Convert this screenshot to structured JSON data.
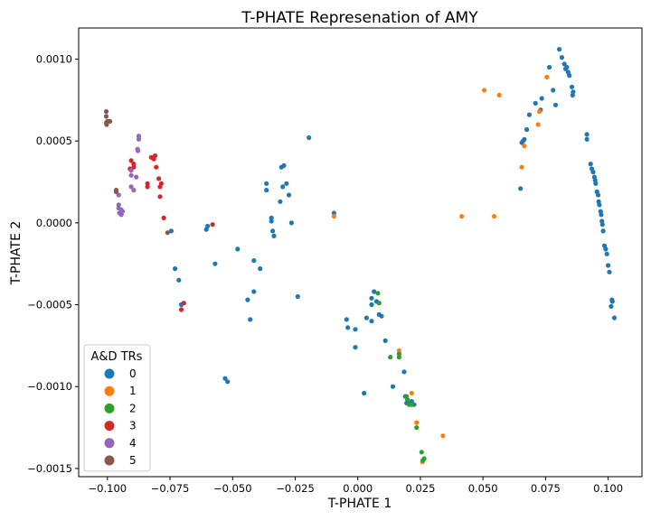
{
  "chart_data": {
    "type": "scatter",
    "title": "T-PHATE Represenation of AMY",
    "xlabel": "T-PHATE 1",
    "ylabel": "T-PHATE 2",
    "xlim": [
      -0.1115,
      0.1135
    ],
    "ylim": [
      -0.00155,
      0.00119
    ],
    "x_ticks": [
      -0.1,
      -0.075,
      -0.05,
      -0.025,
      0.0,
      0.025,
      0.05,
      0.075,
      0.1
    ],
    "x_tick_labels": [
      "−0.100",
      "−0.075",
      "−0.050",
      "−0.025",
      "0.000",
      "0.025",
      "0.050",
      "0.075",
      "0.100"
    ],
    "y_ticks": [
      -0.0015,
      -0.001,
      -0.0005,
      0.0,
      0.0005,
      0.001
    ],
    "y_tick_labels": [
      "−0.0015",
      "−0.0010",
      "−0.0005",
      "0.0000",
      "0.0005",
      "0.0010"
    ],
    "grid": false,
    "legend": {
      "title": "A&D TRs",
      "position": "lower-left"
    },
    "series": [
      {
        "name": "0",
        "color": "#1f77b4",
        "points": [
          [
            0.0805,
            0.00106
          ],
          [
            0.0815,
            0.00101
          ],
          [
            0.0825,
            0.00097
          ],
          [
            0.083,
            0.00094
          ],
          [
            0.0835,
            0.00095
          ],
          [
            0.084,
            0.00092
          ],
          [
            0.0845,
            0.0009
          ],
          [
            0.0855,
            0.00083
          ],
          [
            0.086,
            0.0008
          ],
          [
            0.0858,
            0.00078
          ],
          [
            0.0765,
            0.00095
          ],
          [
            0.078,
            0.00081
          ],
          [
            0.079,
            0.00072
          ],
          [
            0.0735,
            0.00076
          ],
          [
            0.071,
            0.00073
          ],
          [
            0.073,
            0.00069
          ],
          [
            0.0685,
            0.00066
          ],
          [
            0.0675,
            0.00057
          ],
          [
            0.066,
            0.0005
          ],
          [
            0.0665,
            0.00051
          ],
          [
            0.0655,
            0.00049
          ],
          [
            0.065,
            0.00021
          ],
          [
            0.0915,
            0.00054
          ],
          [
            0.0915,
            0.00051
          ],
          [
            0.093,
            0.00036
          ],
          [
            0.0935,
            0.00033
          ],
          [
            0.094,
            0.00031
          ],
          [
            0.0945,
            0.00028
          ],
          [
            0.0948,
            0.00026
          ],
          [
            0.095,
            0.00024
          ],
          [
            0.0955,
            0.00019
          ],
          [
            0.096,
            0.00017
          ],
          [
            0.0962,
            0.00013
          ],
          [
            0.0965,
            0.00011
          ],
          [
            0.097,
            7e-05
          ],
          [
            0.0972,
            5e-05
          ],
          [
            0.0975,
            1e-05
          ],
          [
            0.0977,
            -1e-05
          ],
          [
            0.098,
            -5e-05
          ],
          [
            0.0985,
            -0.00014
          ],
          [
            0.099,
            -0.00016
          ],
          [
            0.0995,
            -0.00019
          ],
          [
            0.1,
            -0.00026
          ],
          [
            0.1005,
            -0.0003
          ],
          [
            0.1015,
            -0.00047
          ],
          [
            0.1017,
            -0.00048
          ],
          [
            0.1012,
            -0.00051
          ],
          [
            0.1025,
            -0.00058
          ],
          [
            -0.0195,
            0.00052
          ],
          [
            -0.0295,
            0.00035
          ],
          [
            -0.0305,
            0.00034
          ],
          [
            -0.0285,
            0.00024
          ],
          [
            -0.0365,
            0.00024
          ],
          [
            -0.0365,
            0.0002
          ],
          [
            -0.03,
            0.00022
          ],
          [
            -0.0275,
            0.00017
          ],
          [
            -0.031,
            0.00013
          ],
          [
            -0.0345,
            3e-05
          ],
          [
            -0.0345,
            1e-05
          ],
          [
            -0.034,
            -5e-05
          ],
          [
            -0.0335,
            -8e-05
          ],
          [
            -0.0095,
            6e-05
          ],
          [
            -0.0265,
            -0.0
          ],
          [
            -0.06,
            -2e-05
          ],
          [
            -0.0605,
            -4e-05
          ],
          [
            -0.0745,
            -5e-05
          ],
          [
            -0.048,
            -0.00016
          ],
          [
            -0.057,
            -0.00025
          ],
          [
            -0.0415,
            -0.00023
          ],
          [
            -0.039,
            -0.00028
          ],
          [
            -0.073,
            -0.00028
          ],
          [
            -0.0715,
            -0.00035
          ],
          [
            -0.0705,
            -0.0005
          ],
          [
            -0.0415,
            -0.00042
          ],
          [
            -0.044,
            -0.00047
          ],
          [
            -0.024,
            -0.00045
          ],
          [
            -0.043,
            -0.00059
          ],
          [
            -0.053,
            -0.00095
          ],
          [
            -0.052,
            -0.00097
          ],
          [
            0.0065,
            -0.00042
          ],
          [
            0.0055,
            -0.00046
          ],
          [
            0.0075,
            -0.00048
          ],
          [
            0.0055,
            -0.0005
          ],
          [
            0.0085,
            -0.00056
          ],
          [
            0.0095,
            -0.00057
          ],
          [
            0.0035,
            -0.00058
          ],
          [
            -0.0045,
            -0.00059
          ],
          [
            0.0055,
            -0.0006
          ],
          [
            -0.004,
            -0.00064
          ],
          [
            -0.001,
            -0.00065
          ],
          [
            0.011,
            -0.00072
          ],
          [
            -0.001,
            -0.00076
          ],
          [
            0.0025,
            -0.00104
          ],
          [
            0.014,
            -0.001
          ],
          [
            0.0185,
            -0.00091
          ],
          [
            0.019,
            -0.00106
          ],
          [
            0.0195,
            -0.0011
          ],
          [
            0.02,
            -0.0011
          ],
          [
            0.0215,
            -0.00109
          ],
          [
            0.0225,
            -0.00111
          ]
        ]
      },
      {
        "name": "1",
        "color": "#ff7f0e",
        "points": [
          [
            0.0755,
            0.00089
          ],
          [
            0.0505,
            0.00081
          ],
          [
            0.0565,
            0.00078
          ],
          [
            0.0725,
            0.00068
          ],
          [
            0.072,
            0.0006
          ],
          [
            0.0665,
            0.00047
          ],
          [
            0.0655,
            0.00034
          ],
          [
            0.0415,
            4e-05
          ],
          [
            0.0545,
            4e-05
          ],
          [
            -0.0095,
            4e-05
          ],
          [
            0.0165,
            -0.00078
          ],
          [
            0.0215,
            -0.00104
          ],
          [
            0.0235,
            -0.00122
          ],
          [
            0.034,
            -0.0013
          ],
          [
            0.0258,
            -0.00146
          ]
        ]
      },
      {
        "name": "2",
        "color": "#2ca02c",
        "points": [
          [
            0.008,
            -0.00043
          ],
          [
            0.0085,
            -0.00049
          ],
          [
            0.0165,
            -0.0008
          ],
          [
            0.0165,
            -0.00082
          ],
          [
            0.013,
            -0.00082
          ],
          [
            0.0195,
            -0.00106
          ],
          [
            0.0198,
            -0.00108
          ],
          [
            0.0205,
            -0.00111
          ],
          [
            0.0215,
            -0.00111
          ],
          [
            0.0235,
            -0.00125
          ],
          [
            0.0255,
            -0.0014
          ],
          [
            0.0265,
            -0.00144
          ],
          [
            0.026,
            -0.00145
          ]
        ]
      },
      {
        "name": "3",
        "color": "#d62728",
        "points": [
          [
            -0.081,
            0.00041
          ],
          [
            -0.0815,
            0.00039
          ],
          [
            -0.0825,
            0.0004
          ],
          [
            -0.0905,
            0.00038
          ],
          [
            -0.0895,
            0.00036
          ],
          [
            -0.0895,
            0.00034
          ],
          [
            -0.091,
            0.00033
          ],
          [
            -0.0805,
            0.00034
          ],
          [
            -0.084,
            0.00024
          ],
          [
            -0.084,
            0.00022
          ],
          [
            -0.0795,
            0.00027
          ],
          [
            -0.0785,
            0.00024
          ],
          [
            -0.079,
            0.00022
          ],
          [
            -0.079,
            0.00016
          ],
          [
            -0.0775,
            3e-05
          ],
          [
            -0.058,
            -1e-05
          ],
          [
            -0.0695,
            -0.00049
          ],
          [
            -0.0705,
            -0.00053
          ]
        ]
      },
      {
        "name": "4",
        "color": "#9467bd",
        "points": [
          [
            -0.0875,
            0.00053
          ],
          [
            -0.0875,
            0.00051
          ],
          [
            -0.088,
            0.00045
          ],
          [
            -0.0878,
            0.00044
          ],
          [
            -0.0905,
            0.00032
          ],
          [
            -0.0905,
            0.00029
          ],
          [
            -0.0885,
            0.00028
          ],
          [
            -0.0905,
            0.00022
          ],
          [
            -0.0895,
            0.0002
          ],
          [
            -0.0955,
            0.00017
          ],
          [
            -0.0955,
            0.00011
          ],
          [
            -0.0955,
            9e-05
          ],
          [
            -0.0945,
            8e-05
          ],
          [
            -0.094,
            7e-05
          ],
          [
            -0.0952,
            6e-05
          ],
          [
            -0.0945,
            5e-05
          ]
        ]
      },
      {
        "name": "5",
        "color": "#8c564b",
        "points": [
          [
            -0.1005,
            0.00068
          ],
          [
            -0.1005,
            0.00065
          ],
          [
            -0.1,
            0.00062
          ],
          [
            -0.099,
            0.00062
          ],
          [
            -0.1005,
            0.00061
          ],
          [
            -0.1003,
            0.0006
          ],
          [
            -0.0965,
            0.0002
          ],
          [
            -0.0965,
            0.00019
          ],
          [
            -0.076,
            -6e-05
          ]
        ]
      }
    ]
  }
}
